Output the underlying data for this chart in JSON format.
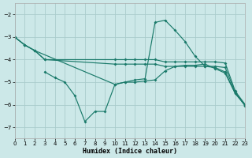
{
  "background_color": "#cce8e8",
  "grid_color": "#aacccc",
  "line_color": "#1a7a6a",
  "x_label": "Humidex (Indice chaleur)",
  "xlim": [
    0,
    23
  ],
  "ylim": [
    -7.5,
    -1.5
  ],
  "yticks": [
    -7,
    -6,
    -5,
    -4,
    -3,
    -2
  ],
  "xticks": [
    0,
    1,
    2,
    3,
    4,
    5,
    6,
    7,
    8,
    9,
    10,
    11,
    12,
    13,
    14,
    15,
    16,
    17,
    18,
    19,
    20,
    21,
    22,
    23
  ],
  "curve_peak_x": [
    0,
    1,
    2,
    10,
    11,
    12,
    13,
    14,
    15,
    16,
    17,
    18,
    19,
    20,
    21,
    22,
    23
  ],
  "curve_peak_y": [
    -3.0,
    -3.35,
    -3.6,
    -5.1,
    -5.0,
    -4.9,
    -4.85,
    -2.35,
    -2.25,
    -2.7,
    -3.2,
    -3.85,
    -4.3,
    -4.35,
    -4.55,
    -5.5,
    -6.0
  ],
  "curve_flat1_x": [
    0,
    1,
    2,
    3,
    10,
    11,
    12,
    13,
    14,
    15,
    16,
    17,
    18,
    19,
    20,
    21,
    22,
    23
  ],
  "curve_flat1_y": [
    -3.0,
    -3.35,
    -3.6,
    -4.0,
    -4.0,
    -4.0,
    -4.0,
    -4.0,
    -4.0,
    -4.1,
    -4.1,
    -4.1,
    -4.1,
    -4.1,
    -4.1,
    -4.15,
    -5.4,
    -6.0
  ],
  "curve_flat2_x": [
    0,
    1,
    2,
    3,
    10,
    11,
    12,
    13,
    14,
    15,
    16,
    17,
    18,
    19,
    20,
    21,
    22,
    23
  ],
  "curve_flat2_y": [
    -3.0,
    -3.35,
    -3.6,
    -4.0,
    -4.2,
    -4.2,
    -4.2,
    -4.2,
    -4.2,
    -4.3,
    -4.3,
    -4.3,
    -4.3,
    -4.3,
    -4.3,
    -4.35,
    -5.45,
    -6.05
  ],
  "curve_dip_x": [
    3,
    4,
    5,
    6,
    7,
    8,
    9,
    10,
    11,
    12,
    13,
    14,
    15,
    16,
    17,
    18,
    19,
    20,
    21,
    22,
    23
  ],
  "curve_dip_y": [
    -4.55,
    -4.8,
    -5.0,
    -5.6,
    -6.75,
    -6.3,
    -6.3,
    -5.1,
    -5.0,
    -5.0,
    -4.95,
    -4.9,
    -4.5,
    -4.3,
    -4.25,
    -4.25,
    -4.2,
    -4.4,
    -4.6,
    -5.5,
    -6.05
  ]
}
